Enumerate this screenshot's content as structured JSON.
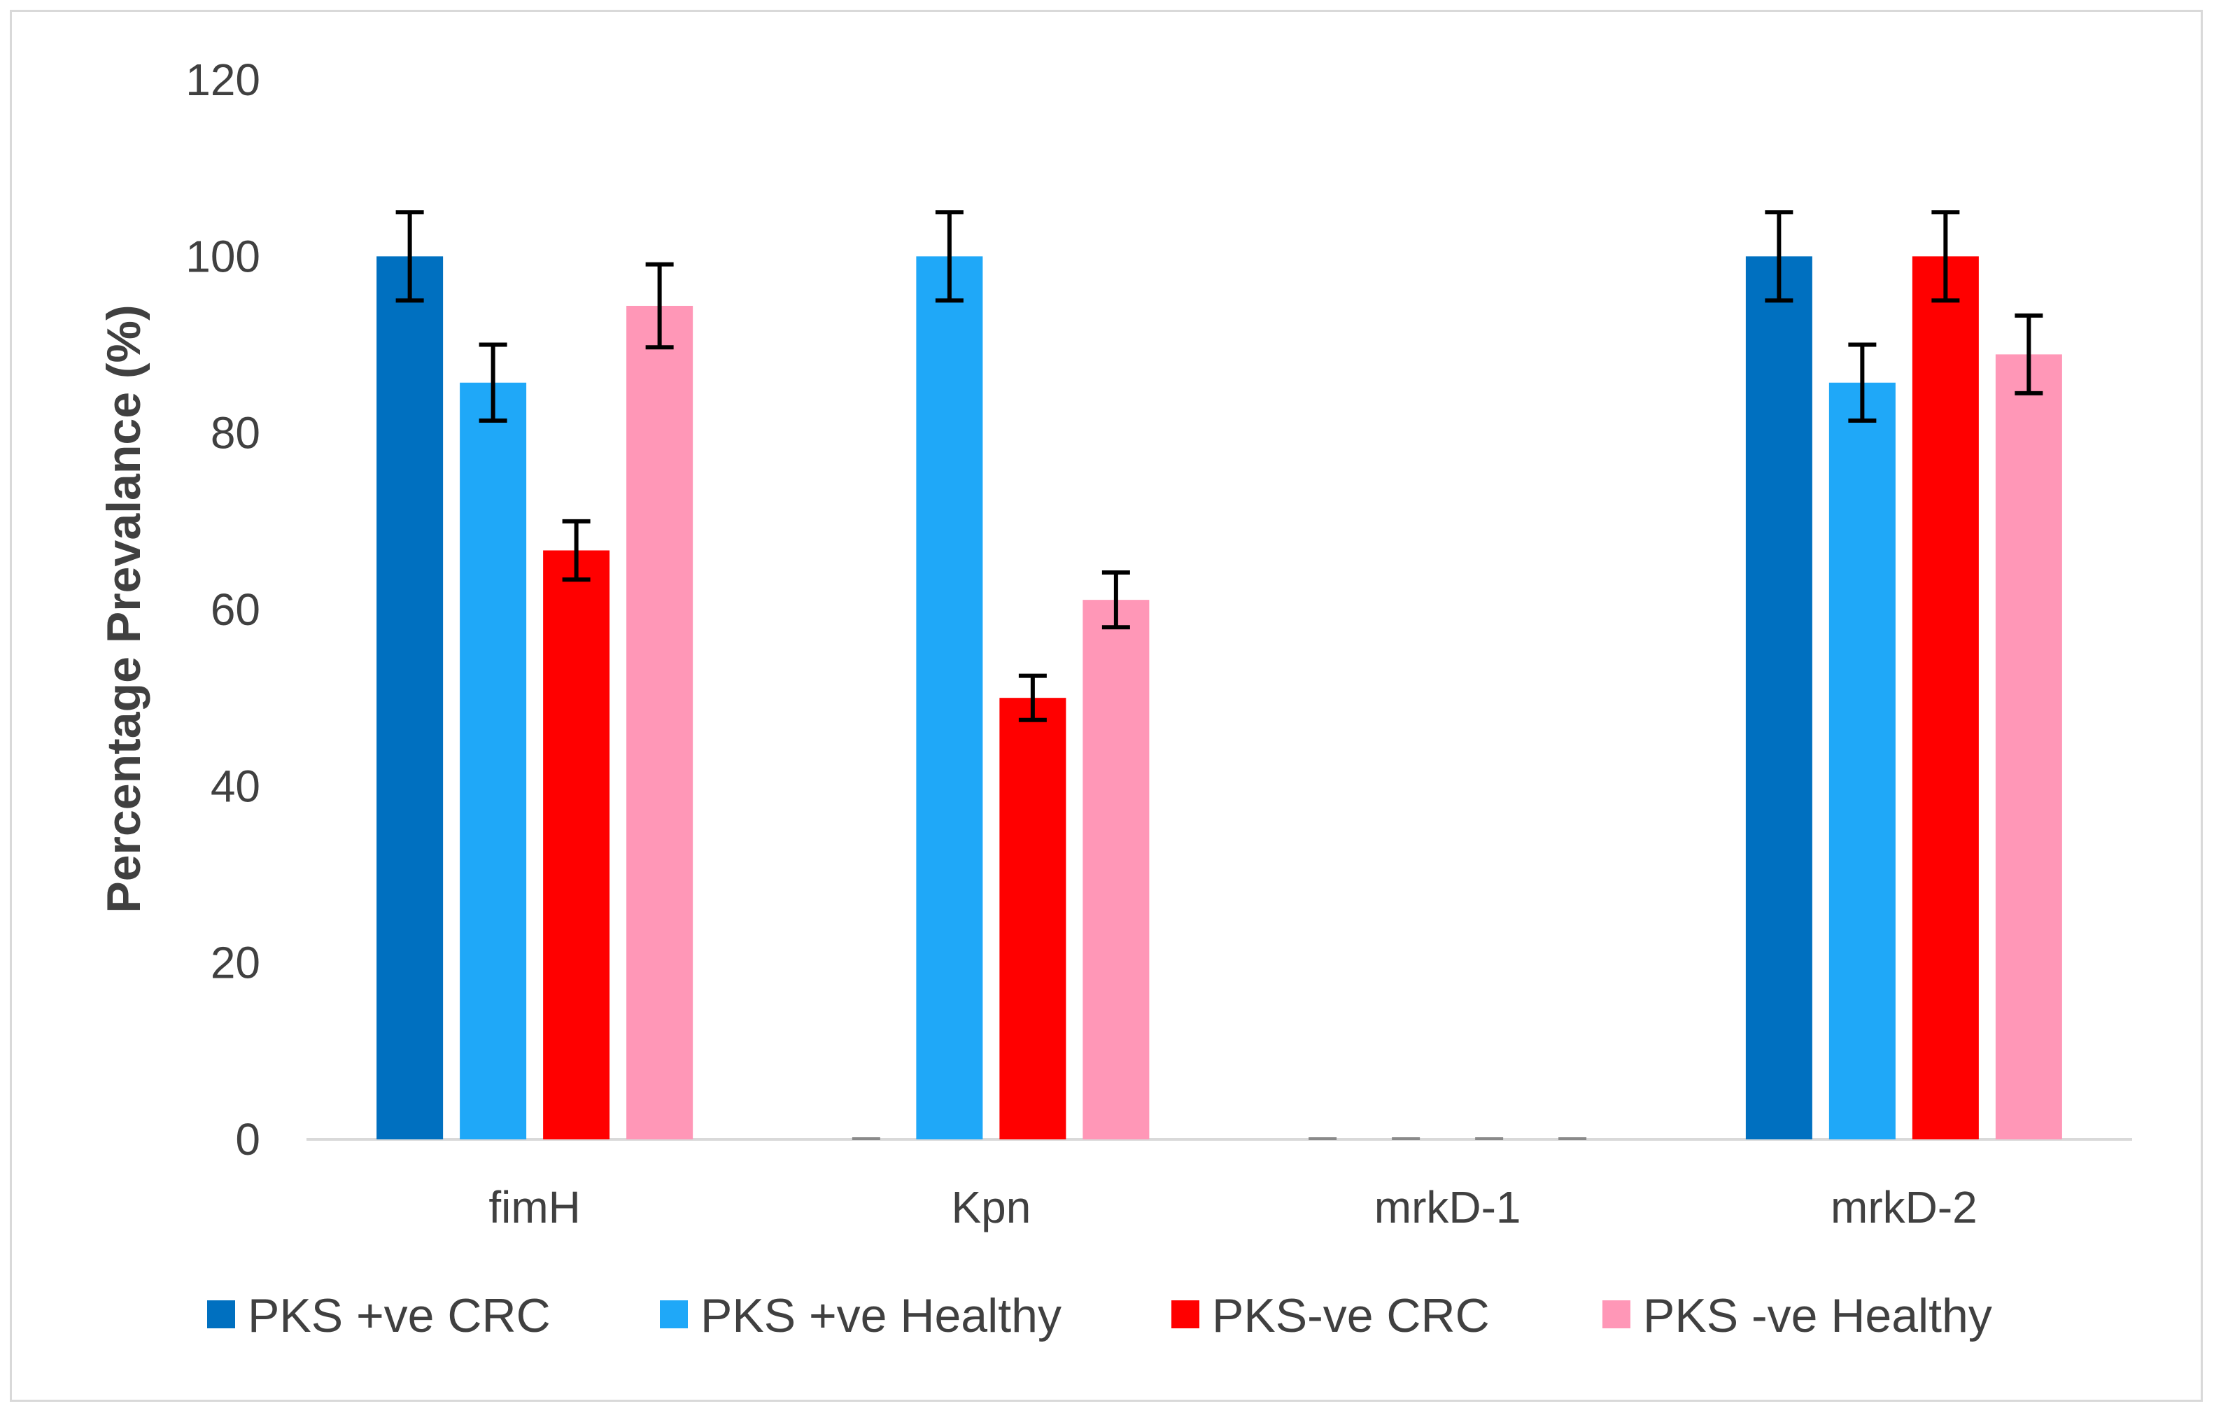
{
  "chart_data": {
    "type": "bar",
    "title": "",
    "xlabel": "",
    "ylabel": "Percentage Prevalance (%)",
    "ylim": [
      0,
      120
    ],
    "yticks": [
      0,
      20,
      40,
      60,
      80,
      100,
      120
    ],
    "grid": false,
    "legend_position": "bottom",
    "categories": [
      "fimH",
      "Kpn",
      "mrkD-1",
      "mrkD-2"
    ],
    "series": [
      {
        "name": "PKS +ve CRC",
        "color": "#0070c0",
        "values": [
          100,
          0,
          0,
          100
        ],
        "errors": [
          5,
          0,
          0,
          5
        ]
      },
      {
        "name": "PKS +ve Healthy",
        "color": "#1fa8f8",
        "values": [
          85.7,
          100,
          0,
          85.7
        ],
        "errors": [
          4.3,
          5,
          0,
          4.3
        ]
      },
      {
        "name": "PKS-ve CRC",
        "color": "#ff0000",
        "values": [
          66.7,
          50,
          0,
          100
        ],
        "errors": [
          3.3,
          2.5,
          0,
          5
        ]
      },
      {
        "name": "PKS -ve Healthy",
        "color": "#ff97b7",
        "values": [
          94.4,
          61.1,
          0,
          88.9
        ],
        "errors": [
          4.7,
          3.1,
          0,
          4.4
        ]
      }
    ]
  }
}
